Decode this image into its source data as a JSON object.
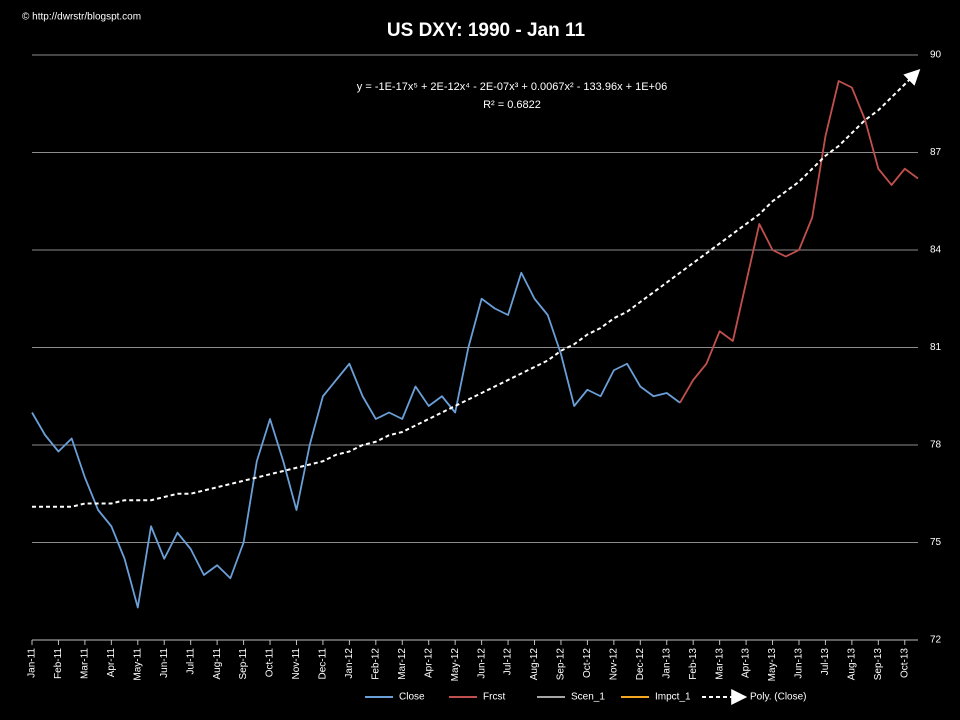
{
  "chart_data": {
    "type": "line",
    "title": "US DXY:  1990 - Jan 11",
    "annotations": [
      "© http://dwrstr/blogspt.com",
      "y = -1E-17x⁵ + 2E-12x⁴ - 2E-07x³ + 0.0067x² - 133.96x + 1E+06",
      "R² = 0.6822"
    ],
    "categories": [
      "Jan-11",
      null,
      "Feb-11",
      null,
      "Mar-11",
      null,
      "Apr-11",
      null,
      "May-11",
      null,
      "Jun-11",
      null,
      "Jul-11",
      null,
      "Aug-11",
      null,
      "Sep-11",
      null,
      "Oct-11",
      null,
      "Nov-11",
      null,
      "Dec-11",
      null,
      "Jan-12",
      null,
      "Feb-12",
      null,
      "Mar-12",
      null,
      "Apr-12",
      null,
      "May-12",
      null,
      "Jun-12",
      null,
      "Jul-12",
      null,
      "Aug-12",
      null,
      "Sep-12",
      null,
      "Oct-12",
      null,
      "Nov-12",
      null,
      "Dec-12",
      null,
      "Jan-13",
      null,
      "Feb-13",
      null,
      "Mar-13",
      null,
      "Apr-13",
      null,
      "May-13",
      null,
      "Jun-13",
      null,
      "Jul-13",
      null,
      "Aug-13",
      null,
      "Sep-13",
      null,
      "Oct-13",
      null
    ],
    "series": [
      {
        "name": "Close",
        "color": "#6a9fd8",
        "values": [
          79.0,
          78.3,
          77.8,
          78.2,
          77.0,
          76.0,
          75.5,
          74.5,
          73.0,
          75.5,
          74.5,
          75.3,
          74.8,
          74.0,
          74.3,
          73.9,
          75.0,
          77.5,
          78.8,
          77.5,
          76.0,
          78.0,
          79.5,
          80.0,
          80.5,
          79.5,
          78.8,
          79.0,
          78.8,
          79.8,
          79.2,
          79.5,
          79.0,
          81.0,
          82.5,
          82.2,
          82.0,
          83.3,
          82.5,
          82.0,
          80.8,
          79.2,
          79.7,
          79.5,
          80.3,
          80.5,
          79.8,
          79.5,
          79.6,
          79.3,
          null,
          null,
          null,
          null,
          null,
          null,
          null,
          null,
          null,
          null,
          null,
          null,
          null,
          null,
          null,
          null,
          null,
          null
        ]
      },
      {
        "name": "Frcst",
        "color": "#c0504d",
        "values": [
          null,
          null,
          null,
          null,
          null,
          null,
          null,
          null,
          null,
          null,
          null,
          null,
          null,
          null,
          null,
          null,
          null,
          null,
          null,
          null,
          null,
          null,
          null,
          null,
          null,
          null,
          null,
          null,
          null,
          null,
          null,
          null,
          null,
          null,
          null,
          null,
          null,
          null,
          null,
          null,
          null,
          null,
          null,
          null,
          null,
          null,
          null,
          null,
          null,
          79.3,
          80.0,
          80.5,
          81.5,
          81.2,
          83.0,
          84.8,
          84.0,
          83.8,
          84.0,
          85.0,
          87.5,
          89.2,
          89.0,
          88.0,
          86.5,
          86.0,
          86.5,
          86.2
        ]
      },
      {
        "name": "Scen_1",
        "color": "#a6a6a6",
        "values": [
          null,
          null,
          null,
          null,
          null,
          null,
          null,
          null,
          null,
          null,
          null,
          null,
          null,
          null,
          null,
          null,
          null,
          null,
          null,
          null,
          null,
          null,
          null,
          null,
          null,
          null,
          null,
          null,
          null,
          null,
          null,
          null,
          null,
          null,
          null,
          null,
          null,
          null,
          null,
          null,
          null,
          null,
          null,
          null,
          null,
          null,
          null,
          null,
          null,
          null,
          null,
          null,
          null,
          null,
          null,
          null,
          null,
          null,
          null,
          null,
          null,
          null,
          null,
          null,
          null,
          null,
          null,
          null
        ]
      },
      {
        "name": "Impct_1",
        "color": "#f5a623",
        "values": [
          null,
          null,
          null,
          null,
          null,
          null,
          null,
          null,
          null,
          null,
          null,
          null,
          null,
          null,
          null,
          null,
          null,
          null,
          null,
          null,
          null,
          null,
          null,
          null,
          null,
          null,
          null,
          null,
          null,
          null,
          null,
          null,
          null,
          null,
          null,
          null,
          null,
          null,
          null,
          null,
          null,
          null,
          null,
          null,
          null,
          null,
          null,
          null,
          null,
          null,
          null,
          null,
          null,
          null,
          null,
          null,
          null,
          null,
          null,
          null,
          null,
          null,
          null,
          null,
          null,
          null,
          null,
          null
        ]
      },
      {
        "name": "Poly. (Close)",
        "color": "#ffffff",
        "dashed": true,
        "arrow": true,
        "values": [
          76.1,
          76.1,
          76.1,
          76.1,
          76.2,
          76.2,
          76.2,
          76.3,
          76.3,
          76.3,
          76.4,
          76.5,
          76.5,
          76.6,
          76.7,
          76.8,
          76.9,
          77.0,
          77.1,
          77.2,
          77.3,
          77.4,
          77.5,
          77.7,
          77.8,
          78.0,
          78.1,
          78.3,
          78.4,
          78.6,
          78.8,
          79.0,
          79.2,
          79.4,
          79.6,
          79.8,
          80.0,
          80.2,
          80.4,
          80.6,
          80.9,
          81.1,
          81.4,
          81.6,
          81.9,
          82.1,
          82.4,
          82.7,
          83.0,
          83.3,
          83.6,
          83.9,
          84.2,
          84.5,
          84.8,
          85.1,
          85.5,
          85.8,
          86.1,
          86.5,
          86.9,
          87.2,
          87.6,
          88.0,
          88.3,
          88.7,
          89.1,
          89.5
        ]
      }
    ],
    "ylim": [
      72,
      90
    ],
    "yticks": [
      72,
      75,
      78,
      81,
      84,
      87,
      90
    ],
    "grid": true,
    "legend": "bottom"
  }
}
